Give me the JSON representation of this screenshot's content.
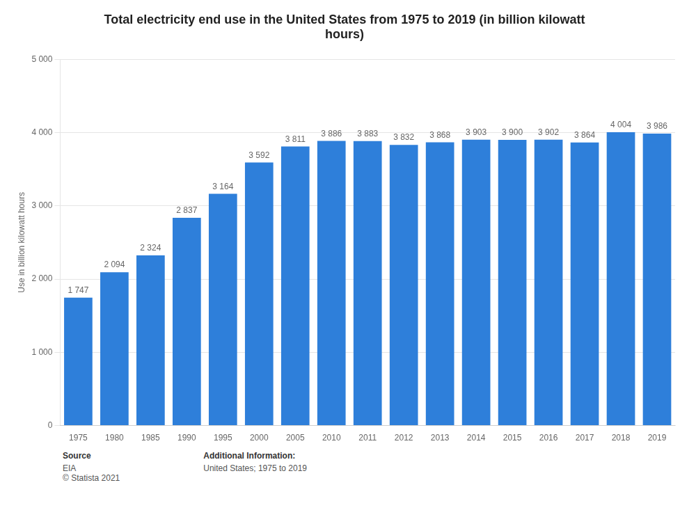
{
  "chart_data": {
    "type": "bar",
    "title": "Total electricity end use in the United States from 1975 to 2019 (in billion kilowatt\nhours)",
    "ylabel": "Use in billion kilowatt hours",
    "categories": [
      "1975",
      "1980",
      "1985",
      "1990",
      "1995",
      "2000",
      "2005",
      "2010",
      "2011",
      "2012",
      "2013",
      "2014",
      "2015",
      "2016",
      "2017",
      "2018",
      "2019"
    ],
    "values": [
      1747,
      2094,
      2324,
      2837,
      3164,
      3592,
      3811,
      3886,
      3883,
      3832,
      3868,
      3903,
      3900,
      3902,
      3864,
      4004,
      3986
    ],
    "value_labels": [
      "1 747",
      "2 094",
      "2 324",
      "2 837",
      "3 164",
      "3 592",
      "3 811",
      "3 886",
      "3 883",
      "3 832",
      "3 868",
      "3 903",
      "3 900",
      "3 902",
      "3 864",
      "4 004",
      "3 986"
    ],
    "data_labels": true,
    "color": "#2e7fda",
    "ylim": [
      0,
      5000
    ],
    "yticks": [
      0,
      {
        "value": 1000,
        "label": "1 000"
      },
      {
        "value": 2000,
        "label": "2 000"
      },
      {
        "value": 3000,
        "label": "3 000"
      },
      {
        "value": 4000,
        "label": "4 000"
      },
      {
        "value": 5000,
        "label": "5 000"
      }
    ],
    "grid": true,
    "annotations": [
      {
        "label": "Source",
        "text": "EIA\n© Statista 2021"
      },
      {
        "label": "Additional Information:",
        "text": "United States; 1975 to 2019"
      }
    ]
  }
}
